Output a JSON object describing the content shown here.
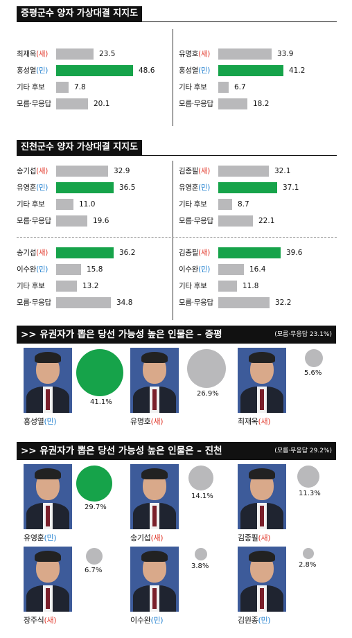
{
  "colors": {
    "green": "#16a34a",
    "gray": "#b9b9bb",
    "red": "#e23b2e",
    "blue": "#1f7fcf"
  },
  "section1": {
    "title": "증평군수 양자 가상대결 지지도",
    "charts": [
      {
        "rows": [
          {
            "name": "최재옥",
            "party": "(새)",
            "value": 23.5,
            "color": "gray"
          },
          {
            "name": "홍성열",
            "party": "(민)",
            "value": 48.6,
            "color": "green"
          },
          {
            "name": "기타 후보",
            "party": "",
            "value": 7.8,
            "color": "gray"
          },
          {
            "name": "모름·무응답",
            "party": "",
            "value": 20.1,
            "color": "gray"
          }
        ]
      },
      {
        "rows": [
          {
            "name": "유명호",
            "party": "(새)",
            "value": 33.9,
            "color": "gray"
          },
          {
            "name": "홍성열",
            "party": "(민)",
            "value": 41.2,
            "color": "green"
          },
          {
            "name": "기타 후보",
            "party": "",
            "value": 6.7,
            "color": "gray"
          },
          {
            "name": "모름·무응답",
            "party": "",
            "value": 18.2,
            "color": "gray"
          }
        ]
      }
    ]
  },
  "section2": {
    "title": "진천군수 양자 가상대결 지지도",
    "charts": [
      {
        "rows": [
          {
            "name": "송기섭",
            "party": "(새)",
            "value": 32.9,
            "color": "gray"
          },
          {
            "name": "유영훈",
            "party": "(민)",
            "value": 36.5,
            "color": "green"
          },
          {
            "name": "기타 후보",
            "party": "",
            "value": 11.0,
            "valueLabel": "11.0",
            "color": "gray"
          },
          {
            "name": "모름·무응답",
            "party": "",
            "value": 19.6,
            "color": "gray"
          }
        ]
      },
      {
        "rows": [
          {
            "name": "김종필",
            "party": "(새)",
            "value": 32.1,
            "color": "gray"
          },
          {
            "name": "유영훈",
            "party": "(민)",
            "value": 37.1,
            "color": "green"
          },
          {
            "name": "기타 후보",
            "party": "",
            "value": 8.7,
            "color": "gray"
          },
          {
            "name": "모름·무응답",
            "party": "",
            "value": 22.1,
            "color": "gray"
          }
        ]
      },
      {
        "rows": [
          {
            "name": "송기섭",
            "party": "(새)",
            "value": 36.2,
            "color": "green"
          },
          {
            "name": "이수완",
            "party": "(민)",
            "value": 15.8,
            "color": "gray"
          },
          {
            "name": "기타 후보",
            "party": "",
            "value": 13.2,
            "color": "gray"
          },
          {
            "name": "모름·무응답",
            "party": "",
            "value": 34.8,
            "color": "gray"
          }
        ]
      },
      {
        "rows": [
          {
            "name": "김종필",
            "party": "(새)",
            "value": 39.6,
            "color": "green"
          },
          {
            "name": "이수완",
            "party": "(민)",
            "value": 16.4,
            "color": "gray"
          },
          {
            "name": "기타 후보",
            "party": "",
            "value": 11.8,
            "color": "gray"
          },
          {
            "name": "모름·무응답",
            "party": "",
            "value": 32.2,
            "color": "gray"
          }
        ]
      }
    ]
  },
  "section3": {
    "title": ">> 유권자가 뽑은 당선 가능성 높은 인물은 – 증평",
    "note": "(모름·무응답 23.1%)",
    "candidates": [
      {
        "name": "홍성열",
        "party": "(민)",
        "value": 41.1,
        "label": "41.1%",
        "color": "green"
      },
      {
        "name": "유명호",
        "party": "(새)",
        "value": 26.9,
        "label": "26.9%",
        "color": "gray"
      },
      {
        "name": "최재옥",
        "party": "(새)",
        "value": 5.6,
        "label": "5.6%",
        "color": "gray"
      }
    ]
  },
  "section4": {
    "title": ">> 유권자가 뽑은 당선 가능성 높은 인물은 – 진천",
    "note": "(모름·무응답 29.2%)",
    "candidates": [
      {
        "name": "유영훈",
        "party": "(민)",
        "value": 29.7,
        "label": "29.7%",
        "color": "green"
      },
      {
        "name": "송기섭",
        "party": "(새)",
        "value": 14.1,
        "label": "14.1%",
        "color": "gray"
      },
      {
        "name": "김종필",
        "party": "(새)",
        "value": 11.3,
        "label": "11.3%",
        "color": "gray"
      },
      {
        "name": "장주식",
        "party": "(새)",
        "value": 6.7,
        "label": "6.7%",
        "color": "gray"
      },
      {
        "name": "이수완",
        "party": "(민)",
        "value": 3.8,
        "label": "3.8%",
        "color": "gray"
      },
      {
        "name": "김원종",
        "party": "(민)",
        "value": 2.8,
        "label": "2.8%",
        "color": "gray"
      }
    ]
  },
  "chart_data": [
    {
      "type": "bar",
      "title": "증평군수 양자 가상대결 지지도",
      "categories": [
        "최재옥(새)",
        "홍성열(민)",
        "기타 후보",
        "모름·무응답"
      ],
      "values": [
        23.5,
        48.6,
        7.8,
        20.1
      ]
    },
    {
      "type": "bar",
      "title": "증평군수 양자 가상대결 지지도",
      "categories": [
        "유명호(새)",
        "홍성열(민)",
        "기타 후보",
        "모름·무응답"
      ],
      "values": [
        33.9,
        41.2,
        6.7,
        18.2
      ]
    },
    {
      "type": "bar",
      "title": "진천군수 양자 가상대결 지지도",
      "categories": [
        "송기섭(새)",
        "유영훈(민)",
        "기타 후보",
        "모름·무응답"
      ],
      "values": [
        32.9,
        36.5,
        11.0,
        19.6
      ]
    },
    {
      "type": "bar",
      "title": "진천군수 양자 가상대결 지지도",
      "categories": [
        "김종필(새)",
        "유영훈(민)",
        "기타 후보",
        "모름·무응답"
      ],
      "values": [
        32.1,
        37.1,
        8.7,
        22.1
      ]
    },
    {
      "type": "bar",
      "title": "진천군수 양자 가상대결 지지도",
      "categories": [
        "송기섭(새)",
        "이수완(민)",
        "기타 후보",
        "모름·무응답"
      ],
      "values": [
        36.2,
        15.8,
        13.2,
        34.8
      ]
    },
    {
      "type": "bar",
      "title": "진천군수 양자 가상대결 지지도",
      "categories": [
        "김종필(새)",
        "이수완(민)",
        "기타 후보",
        "모름·무응답"
      ],
      "values": [
        39.6,
        16.4,
        11.8,
        32.2
      ]
    },
    {
      "type": "scatter",
      "title": ">> 유권자가 뽑은 당선 가능성 높은 인물은 – 증평",
      "categories": [
        "홍성열(민)",
        "유명호(새)",
        "최재옥(새)"
      ],
      "values": [
        41.1,
        26.9,
        5.6
      ]
    },
    {
      "type": "scatter",
      "title": ">> 유권자가 뽑은 당선 가능성 높은 인물은 – 진천",
      "categories": [
        "유영훈(민)",
        "송기섭(새)",
        "김종필(새)",
        "장주식(새)",
        "이수완(민)",
        "김원종(민)"
      ],
      "values": [
        29.7,
        14.1,
        11.3,
        6.7,
        3.8,
        2.8
      ]
    }
  ]
}
